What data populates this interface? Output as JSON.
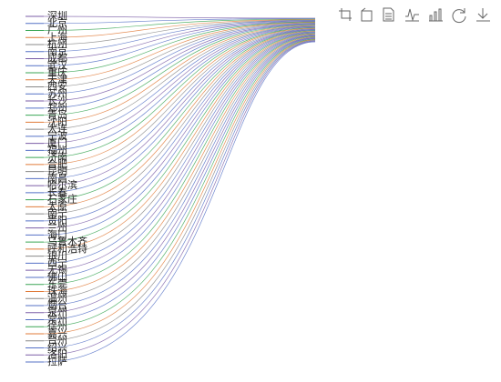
{
  "chart_data": {
    "type": "tree",
    "colors": [
      "#7b5ea7",
      "#5470c6",
      "#3aa655",
      "#e07b39",
      "#888888",
      "#5470c6"
    ],
    "nodes": [
      "深圳",
      "北京",
      "广州",
      "上海",
      "杭州",
      "南京",
      "成都",
      "武汉",
      "重庆",
      "天津",
      "西安",
      "苏州",
      "长沙",
      "郑州",
      "青岛",
      "沈阳",
      "大连",
      "宁波",
      "厦门",
      "福州",
      "济南",
      "合肥",
      "昆明",
      "南昌",
      "哈尔滨",
      "长春",
      "石家庄",
      "太原",
      "南宁",
      "贵阳",
      "兰州",
      "海口",
      "乌鲁木齐",
      "呼和浩特",
      "银川",
      "西宁",
      "无锡",
      "佛山",
      "东莞",
      "珠海",
      "温州",
      "烟台",
      "泉州",
      "常州",
      "徐州",
      "嘉兴",
      "台州",
      "绍兴",
      "洛阳",
      "拉萨"
    ]
  }
}
